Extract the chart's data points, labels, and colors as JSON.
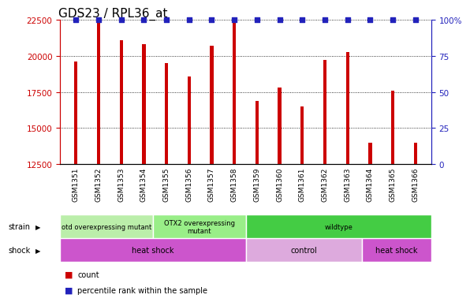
{
  "title": "GDS23 / RPL36_at",
  "samples": [
    "GSM1351",
    "GSM1352",
    "GSM1353",
    "GSM1354",
    "GSM1355",
    "GSM1356",
    "GSM1357",
    "GSM1358",
    "GSM1359",
    "GSM1360",
    "GSM1361",
    "GSM1362",
    "GSM1363",
    "GSM1364",
    "GSM1365",
    "GSM1366"
  ],
  "counts": [
    19600,
    22400,
    21100,
    20800,
    19500,
    18600,
    20700,
    22300,
    16900,
    17800,
    16500,
    19700,
    20300,
    14000,
    17600,
    14000
  ],
  "percentile": [
    100,
    100,
    100,
    100,
    100,
    100,
    100,
    100,
    100,
    100,
    100,
    100,
    100,
    100,
    100,
    100
  ],
  "ymin": 12500,
  "ymax": 22500,
  "y2min": 0,
  "y2max": 100,
  "yticks": [
    12500,
    15000,
    17500,
    20000,
    22500
  ],
  "y2ticks": [
    0,
    25,
    50,
    75,
    100
  ],
  "bar_color": "#cc0000",
  "dot_color": "#2222bb",
  "strain_groups": [
    {
      "label": "otd overexpressing mutant",
      "start": 0,
      "end": 4,
      "color": "#bbeeaa"
    },
    {
      "label": "OTX2 overexpressing\nmutant",
      "start": 4,
      "end": 8,
      "color": "#99ee88"
    },
    {
      "label": "wildtype",
      "start": 8,
      "end": 16,
      "color": "#44cc44"
    }
  ],
  "shock_groups": [
    {
      "label": "heat shock",
      "start": 0,
      "end": 8,
      "color": "#cc55cc"
    },
    {
      "label": "control",
      "start": 8,
      "end": 13,
      "color": "#ddaadd"
    },
    {
      "label": "heat shock",
      "start": 13,
      "end": 16,
      "color": "#cc55cc"
    }
  ],
  "bar_width": 0.15,
  "title_fontsize": 11,
  "tick_fontsize": 7.5,
  "sample_fontsize": 6.5
}
